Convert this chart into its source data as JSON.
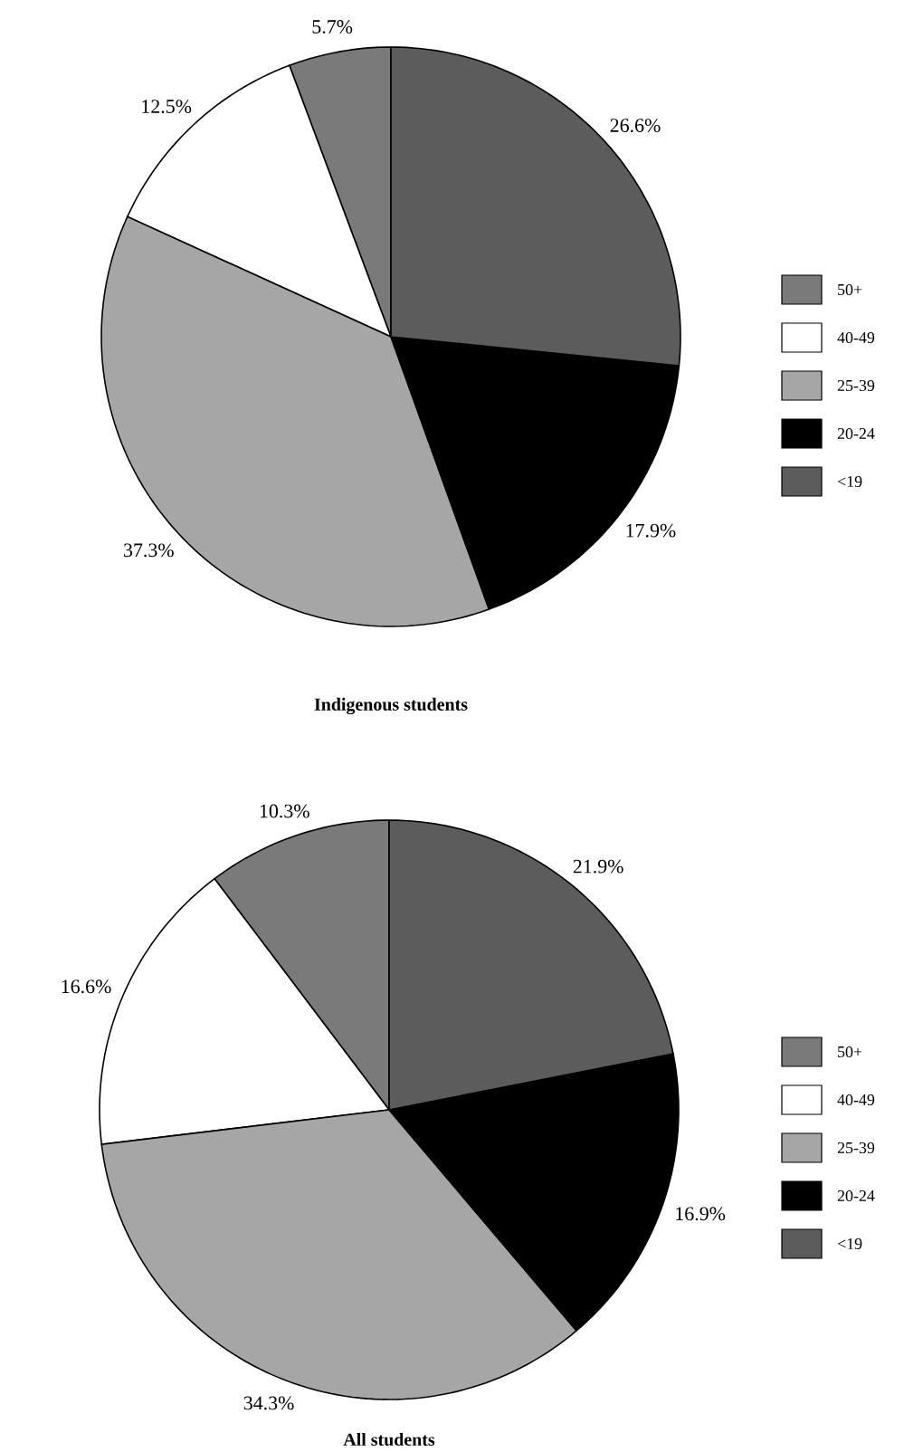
{
  "chart_data": [
    {
      "type": "pie",
      "title": "Indigenous students",
      "categories": [
        "50+",
        "40-49",
        "25-39",
        "20-24",
        "<19"
      ],
      "values": [
        5.7,
        12.5,
        37.3,
        17.9,
        26.6
      ],
      "value_labels": [
        "5.7%",
        "12.5%",
        "37.3%",
        "17.9%",
        "26.6%"
      ],
      "colors": [
        "#7a7a7a",
        "#ffffff",
        "#a6a6a6",
        "#000000",
        "#5c5c5c"
      ],
      "legend": "right"
    },
    {
      "type": "pie",
      "title": "All students",
      "categories": [
        "50+",
        "40-49",
        "25-39",
        "20-24",
        "<19"
      ],
      "values": [
        10.3,
        16.6,
        34.3,
        16.9,
        21.9
      ],
      "value_labels": [
        "10.3%",
        "16.6%",
        "34.3%",
        "16.9%",
        "21.9%"
      ],
      "colors": [
        "#7a7a7a",
        "#ffffff",
        "#a6a6a6",
        "#000000",
        "#5c5c5c"
      ],
      "legend": "right"
    }
  ]
}
